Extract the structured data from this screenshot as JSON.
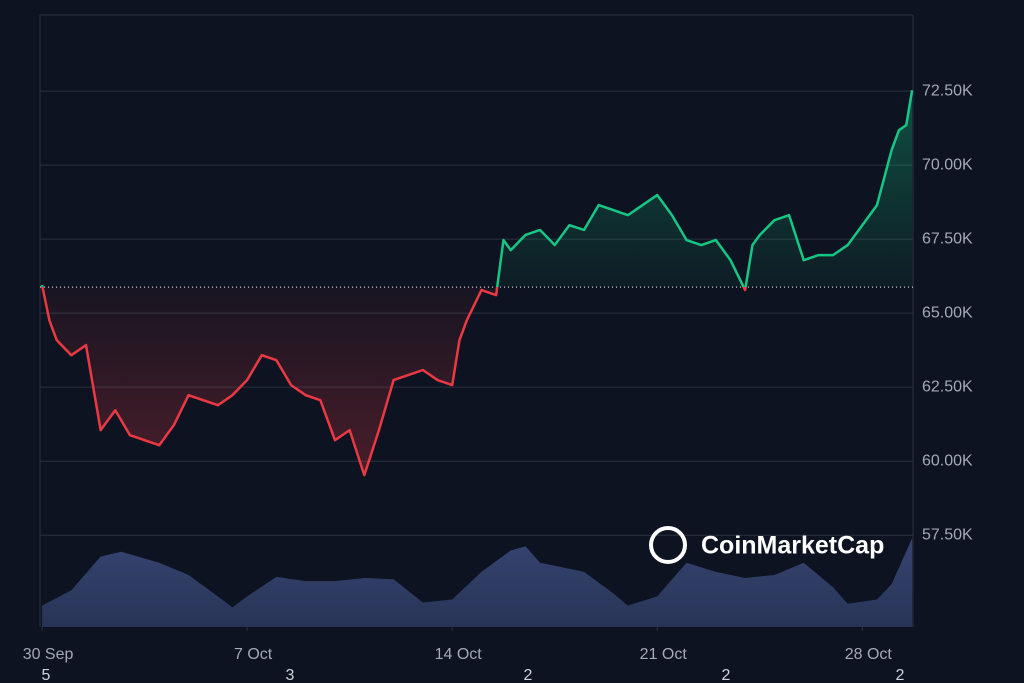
{
  "chart_data": {
    "type": "line",
    "watermark": "CoinMarketCap",
    "x": [
      0,
      0.25,
      0.5,
      1,
      1.5,
      2,
      2.5,
      3,
      3.5,
      4,
      4.5,
      5,
      5.5,
      6,
      6.5,
      7,
      7.5,
      8,
      8.5,
      9,
      9.5,
      10,
      10.5,
      11,
      11.5,
      12,
      12.5,
      13,
      13.5,
      14,
      14.25,
      14.5,
      15,
      15.5,
      15.75,
      16,
      16.5,
      17,
      17.5,
      18,
      18.5,
      19,
      19.5,
      20,
      20.5,
      21,
      21.5,
      22,
      22.5,
      23,
      23.5,
      24,
      24.25,
      24.5,
      25,
      25.5,
      26,
      26.5,
      27,
      27.5,
      28,
      28.5,
      29,
      29.25,
      29.5,
      29.7
    ],
    "series": [
      {
        "name": "Price",
        "color_up": "#16c784",
        "color_down": "#ea3943",
        "values": [
          65950,
          64760,
          64090,
          63580,
          63920,
          61050,
          61720,
          60880,
          60710,
          60540,
          61220,
          62230,
          62060,
          61890,
          62230,
          62740,
          63580,
          63410,
          62570,
          62230,
          62060,
          60710,
          61050,
          59530,
          61050,
          62740,
          62910,
          63080,
          62740,
          62570,
          64090,
          64760,
          65780,
          65610,
          67470,
          67130,
          67640,
          67810,
          67300,
          67970,
          67810,
          68650,
          68480,
          68310,
          68650,
          68990,
          68310,
          67470,
          67300,
          67470,
          66790,
          65780,
          67300,
          67640,
          68140,
          68310,
          66790,
          66960,
          66960,
          67300,
          67970,
          68650,
          70510,
          71180,
          71350,
          72530
        ]
      },
      {
        "name": "Volume",
        "axis": "y2",
        "color": "#3a4a7a",
        "x": [
          0,
          1,
          2,
          2.7,
          4,
          5,
          6,
          6.5,
          7,
          8,
          9,
          10,
          11,
          12,
          13,
          14,
          15,
          16,
          16.5,
          17,
          18.5,
          19.5,
          20,
          21,
          22,
          23,
          24,
          25,
          26,
          27,
          27.5,
          28.5,
          29,
          29.7
        ],
        "values": [
          3.5,
          6,
          11.5,
          12.3,
          10.5,
          8.5,
          5,
          3.2,
          5,
          8.2,
          7.5,
          7.5,
          8,
          7.8,
          4,
          4.5,
          9,
          12.5,
          13.2,
          10.5,
          9,
          5.5,
          3.5,
          5,
          10.5,
          9,
          8,
          8.5,
          10.5,
          6.5,
          3.8,
          4.5,
          7,
          14.5
        ]
      }
    ],
    "baseline": 65880,
    "xlim": [
      -0.07,
      29.73
    ],
    "xticks": [
      {
        "value": 0,
        "label": "30 Sep"
      },
      {
        "value": 7,
        "label": "7 Oct"
      },
      {
        "value": 14,
        "label": "14 Oct"
      },
      {
        "value": 21,
        "label": "21 Oct"
      },
      {
        "value": 28,
        "label": "28 Oct"
      }
    ],
    "x_sublabels": [
      "5",
      "3",
      "2",
      "2",
      "2"
    ],
    "ylim": [
      54400,
      75070
    ],
    "yticks": [
      {
        "value": 57500,
        "label": "57.50K"
      },
      {
        "value": 60000,
        "label": "60.00K"
      },
      {
        "value": 62500,
        "label": "62.50K"
      },
      {
        "value": 65000,
        "label": "65.00K"
      },
      {
        "value": 67500,
        "label": "67.50K"
      },
      {
        "value": 70000,
        "label": "70.00K"
      },
      {
        "value": 72500,
        "label": "72.50K"
      }
    ],
    "y2lim": [
      0,
      100
    ],
    "grid": true
  }
}
